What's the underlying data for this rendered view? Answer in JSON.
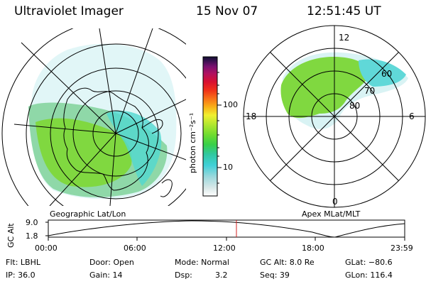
{
  "header": {
    "instrument": "Ultraviolet Imager",
    "date": "15 Nov 07",
    "time": "12:51:45 UT"
  },
  "maps": {
    "geographic_label": "Geographic Lat/Lon",
    "apex_label": "Apex MLat/MLT",
    "apex_mlt_labels": {
      "top": "12",
      "left": "18",
      "right": "6",
      "bottom": "0"
    },
    "apex_lat_labels": [
      "60",
      "70",
      "80"
    ]
  },
  "colorbar": {
    "unit_label": "photon cm⁻²s⁻¹",
    "ticks": [
      "100",
      "10"
    ],
    "colors": [
      "#ffffff",
      "#d8e8e8",
      "#9ad8dc",
      "#40d0d8",
      "#30c8a0",
      "#38d048",
      "#70dc30",
      "#b8e830",
      "#f0f030",
      "#f8b018",
      "#f87018",
      "#f03018",
      "#d81030",
      "#b01060",
      "#7a1070",
      "#3a1050",
      "#101030"
    ]
  },
  "orbit_plot": {
    "ylabel": "GC Alt",
    "yticks": [
      "9.0",
      "1.8"
    ],
    "xticks": [
      "00:00",
      "06:00",
      "12:00",
      "18:00",
      "23:59"
    ],
    "current_time_marker": "12:51:45",
    "marker_color": "#d02020"
  },
  "status": {
    "row1": {
      "filter": "Flt: LBHL",
      "door": "Door: Open",
      "mode": "Mode: Normal",
      "gc_alt": "GC Alt: 8.0 Re",
      "glat": "GLat: −80.6"
    },
    "row2": {
      "ip": "IP: 36.0",
      "gain": "Gain: 14",
      "dsp_label": "Dsp:",
      "dsp_value": "3.2",
      "seq": "Seq: 39",
      "glon": "GLon: 116.4"
    }
  }
}
